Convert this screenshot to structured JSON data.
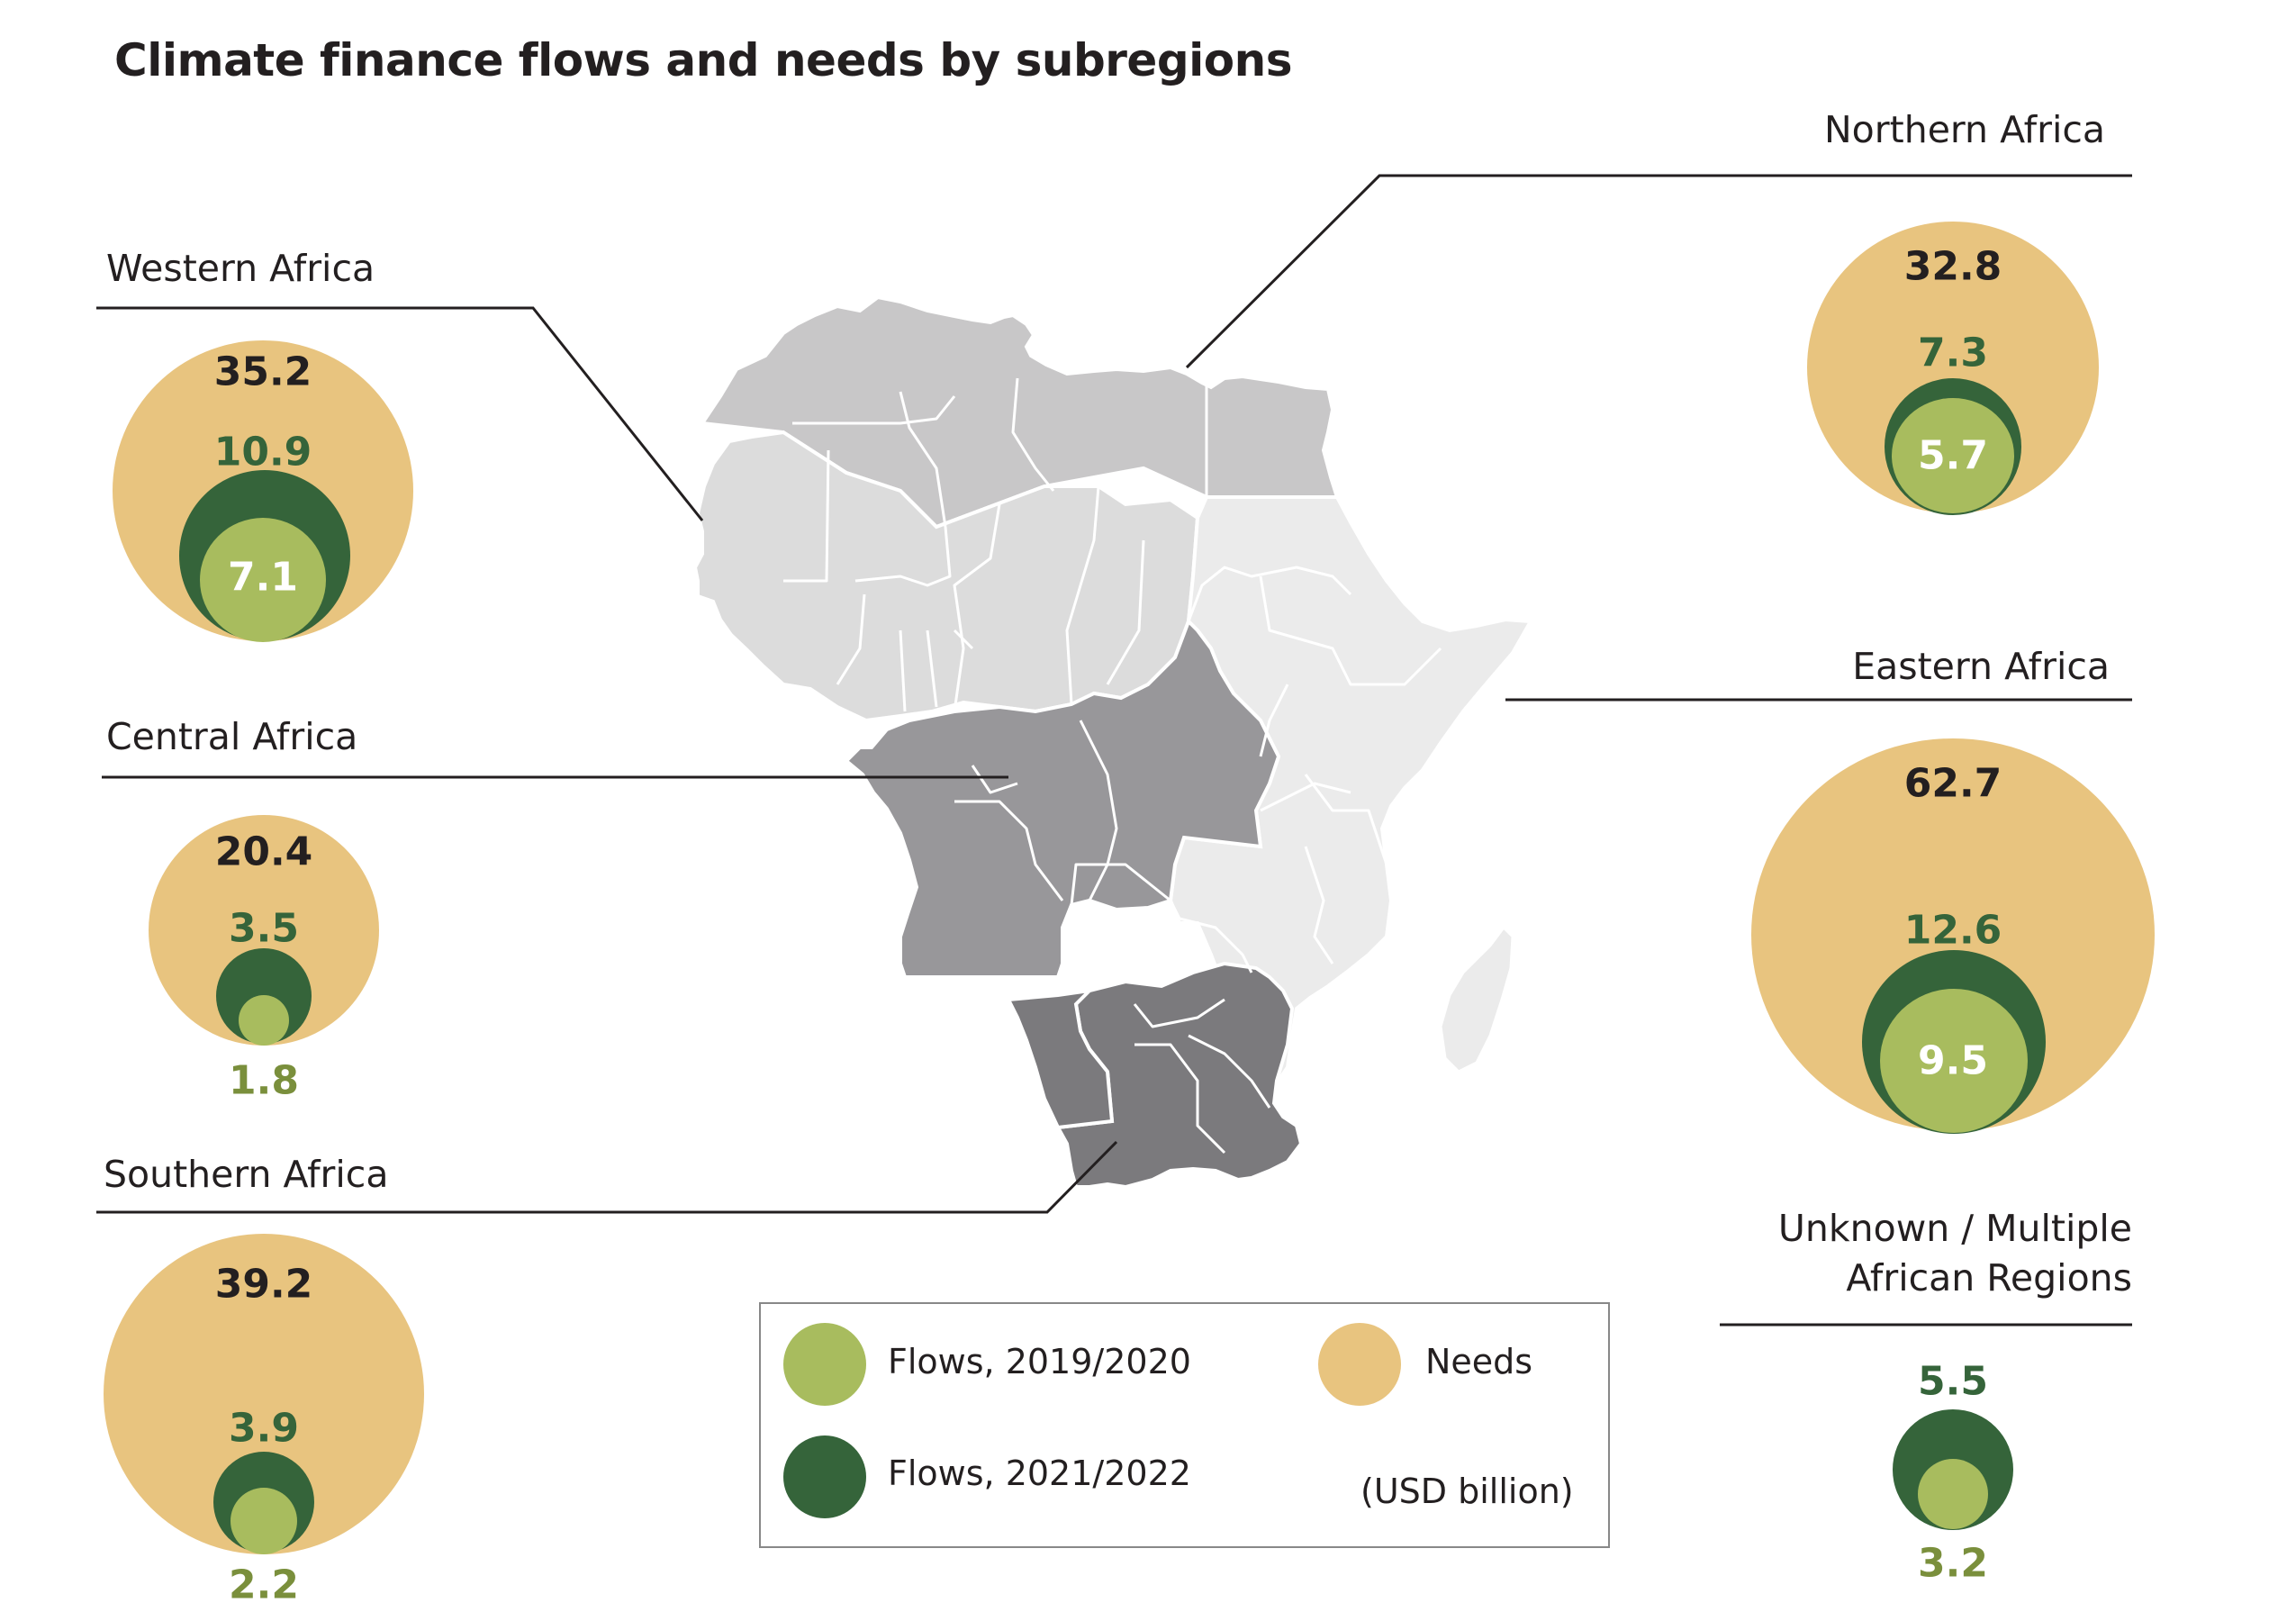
{
  "title": "Climate finance flows and needs by subregions",
  "colors": {
    "needs": "#e8c47f",
    "flows_2021_2022": "#35643a",
    "flows_2019_2020": "#a8bc5e",
    "northern_africa": "#c8c7c8",
    "western_africa": "#dcdcdc",
    "central_africa": "#98979a",
    "eastern_africa": "#ebebeb",
    "southern_africa": "#7b7a7d"
  },
  "regions": [
    {
      "key": "northern",
      "label": "Northern Africa",
      "needs": "32.8",
      "flows_2021_2022": "7.3",
      "flows_2019_2020": "5.7"
    },
    {
      "key": "western",
      "label": "Western Africa",
      "needs": "35.2",
      "flows_2021_2022": "10.9",
      "flows_2019_2020": "7.1"
    },
    {
      "key": "central",
      "label": "Central Africa",
      "needs": "20.4",
      "flows_2021_2022": "3.5",
      "flows_2019_2020": "1.8"
    },
    {
      "key": "eastern",
      "label": "Eastern Africa",
      "needs": "62.7",
      "flows_2021_2022": "12.6",
      "flows_2019_2020": "9.5"
    },
    {
      "key": "southern",
      "label": "Southern Africa",
      "needs": "39.2",
      "flows_2021_2022": "3.9",
      "flows_2019_2020": "2.2"
    },
    {
      "key": "unknown",
      "label_line1": "Unknown / Multiple",
      "label_line2": "African Regions",
      "flows_2021_2022": "5.5",
      "flows_2019_2020": "3.2"
    }
  ],
  "legend": {
    "flows_2019_2020": "Flows, 2019/2020",
    "flows_2021_2022": "Flows, 2021/2022",
    "needs": "Needs",
    "unit": "(USD billion)"
  }
}
